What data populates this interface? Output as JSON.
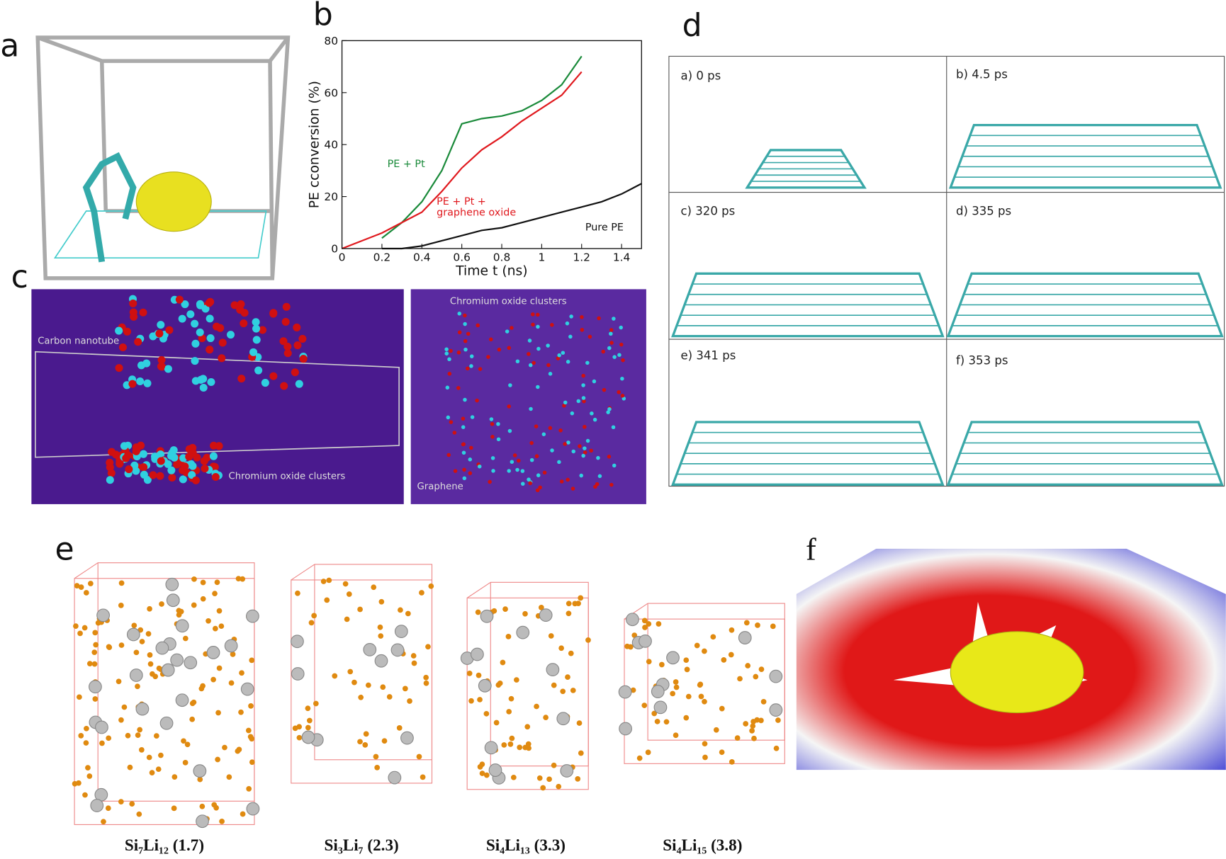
{
  "panels": {
    "a": "a",
    "b": "b",
    "c": "c",
    "d": "d",
    "e": "e",
    "f": "f"
  },
  "panel_c": {
    "labels": [
      "Carbon nanotube",
      "Chromium oxide clusters",
      "Chromium oxide clusters",
      "Graphene"
    ]
  },
  "panel_d": {
    "frames": [
      "a) 0 ps",
      "b) 4.5 ps",
      "c) 320 ps",
      "d) 335 ps",
      "e) 341 ps",
      "f) 353 ps"
    ]
  },
  "panel_e": {
    "captions": [
      "Si₇Li₁₂ (1.7)",
      "Si₃Li₇ (2.3)",
      "Si₄Li₁₃ (3.3)",
      "Si₄Li₁₅ (3.8)"
    ]
  },
  "chart_data": {
    "type": "line",
    "x_label": "Time t (ns)",
    "y_label": "PE cconversion (%)",
    "x": [
      0,
      0.1,
      0.2,
      0.3,
      0.4,
      0.5,
      0.6,
      0.7,
      0.8,
      0.9,
      1.0,
      1.1,
      1.2,
      1.3,
      1.4,
      1.5
    ],
    "series": [
      {
        "name": "PE + Pt",
        "color": "#1a8a3a",
        "values": [
          null,
          null,
          4,
          10,
          18,
          30,
          48,
          50,
          51,
          53,
          57,
          63,
          74,
          null,
          null,
          null
        ]
      },
      {
        "name": "PE + Pt + graphene oxide",
        "color": "#e0191e",
        "values": [
          0,
          3,
          6,
          10,
          14,
          22,
          31,
          38,
          43,
          49,
          54,
          59,
          68,
          null,
          null,
          null
        ]
      },
      {
        "name": "Pure PE",
        "color": "#111111",
        "values": [
          null,
          null,
          0,
          0,
          1,
          3,
          5,
          7,
          8,
          10,
          12,
          14,
          16,
          18,
          21,
          25
        ]
      }
    ],
    "xlim": [
      0,
      1.5
    ],
    "xticks": [
      0,
      0.2,
      0.4,
      0.6,
      0.8,
      1,
      1.2,
      1.4
    ],
    "ylim": [
      0,
      80
    ],
    "yticks": [
      0,
      20,
      40,
      60,
      80
    ]
  }
}
